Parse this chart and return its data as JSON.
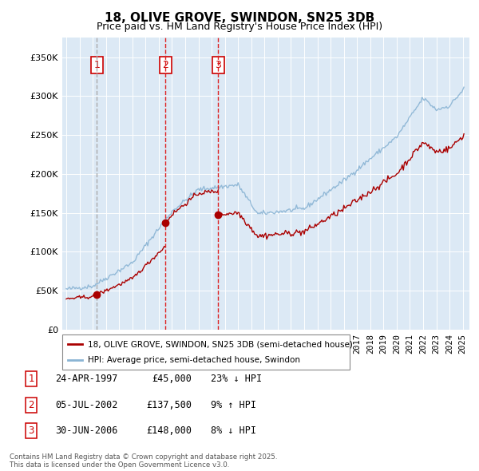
{
  "title": "18, OLIVE GROVE, SWINDON, SN25 3DB",
  "subtitle": "Price paid vs. HM Land Registry's House Price Index (HPI)",
  "legend_line1": "18, OLIVE GROVE, SWINDON, SN25 3DB (semi-detached house)",
  "legend_line2": "HPI: Average price, semi-detached house, Swindon",
  "footer": "Contains HM Land Registry data © Crown copyright and database right 2025.\nThis data is licensed under the Open Government Licence v3.0.",
  "transactions": [
    {
      "num": 1,
      "date": "24-APR-1997",
      "price": 45000,
      "year": 1997.31,
      "label": "23% ↓ HPI"
    },
    {
      "num": 2,
      "date": "05-JUL-2002",
      "price": 137500,
      "year": 2002.51,
      "label": "9% ↑ HPI"
    },
    {
      "num": 3,
      "date": "30-JUN-2006",
      "price": 148000,
      "year": 2006.5,
      "label": "8% ↓ HPI"
    }
  ],
  "hpi_color": "#8ab4d4",
  "price_color": "#aa0000",
  "vline1_color": "#999999",
  "vline23_color": "#dd2222",
  "box_color": "#cc0000",
  "background_color": "#dce9f5",
  "ylim": [
    0,
    375000
  ],
  "yticks": [
    0,
    50000,
    100000,
    150000,
    200000,
    250000,
    300000,
    350000
  ],
  "xlim": [
    1994.7,
    2025.5
  ],
  "figsize": [
    6.0,
    5.9
  ],
  "dpi": 100
}
